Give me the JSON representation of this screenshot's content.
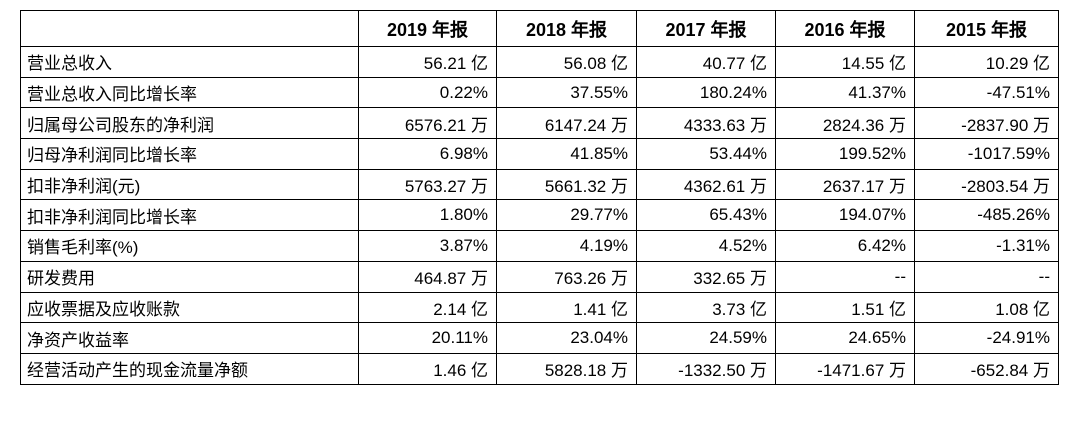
{
  "table": {
    "columns": [
      "2019 年报",
      "2018 年报",
      "2017 年报",
      "2016 年报",
      "2015 年报"
    ],
    "rows": [
      {
        "label": "营业总收入",
        "values": [
          "56.21 亿",
          "56.08 亿",
          "40.77 亿",
          "14.55 亿",
          "10.29 亿"
        ]
      },
      {
        "label": "营业总收入同比增长率",
        "values": [
          "0.22%",
          "37.55%",
          "180.24%",
          "41.37%",
          "-47.51%"
        ]
      },
      {
        "label": "归属母公司股东的净利润",
        "values": [
          "6576.21 万",
          "6147.24 万",
          "4333.63 万",
          "2824.36 万",
          "-2837.90 万"
        ]
      },
      {
        "label": "归母净利润同比增长率",
        "values": [
          "6.98%",
          "41.85%",
          "53.44%",
          "199.52%",
          "-1017.59%"
        ]
      },
      {
        "label": "扣非净利润(元)",
        "values": [
          "5763.27 万",
          "5661.32 万",
          "4362.61 万",
          "2637.17 万",
          "-2803.54 万"
        ]
      },
      {
        "label": "扣非净利润同比增长率",
        "values": [
          "1.80%",
          "29.77%",
          "65.43%",
          "194.07%",
          "-485.26%"
        ]
      },
      {
        "label": "销售毛利率(%)",
        "values": [
          "3.87%",
          "4.19%",
          "4.52%",
          "6.42%",
          "-1.31%"
        ]
      },
      {
        "label": "研发费用",
        "values": [
          "464.87 万",
          "763.26 万",
          "332.65 万",
          "--",
          "--"
        ]
      },
      {
        "label": "应收票据及应收账款",
        "values": [
          "2.14 亿",
          "1.41 亿",
          "3.73 亿",
          "1.51 亿",
          "1.08 亿"
        ]
      },
      {
        "label": "净资产收益率",
        "values": [
          "20.11%",
          "23.04%",
          "24.59%",
          "24.65%",
          "-24.91%"
        ]
      },
      {
        "label": "经营活动产生的现金流量净额",
        "values": [
          "1.46 亿",
          "5828.18 万",
          "-1332.50 万",
          "-1471.67 万",
          "-652.84 万"
        ]
      }
    ]
  }
}
